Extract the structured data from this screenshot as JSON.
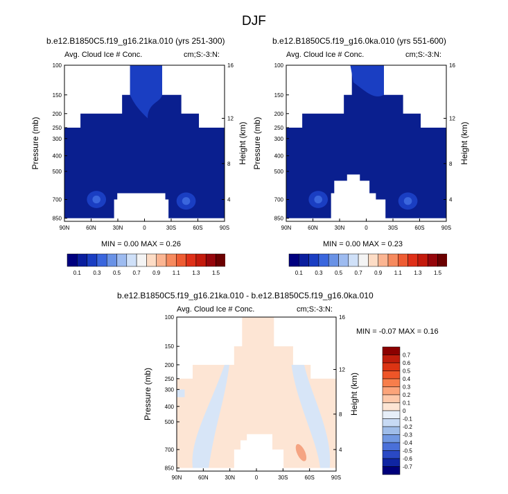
{
  "figure_title": "DJF",
  "panels": [
    {
      "id": "p1",
      "case_title": "b.e12.B1850C5.f19_g16.21ka.010 (yrs 251-300)",
      "left_label": "Avg. Cloud Ice # Conc.",
      "right_label": "cm;S:-3:N:",
      "min_max": "MIN =  0.00  MAX =  0.26",
      "ylabel_left": "Pressure (mb)",
      "ylabel_right": "Height (km)"
    },
    {
      "id": "p2",
      "case_title": "b.e12.B1850C5.f19_g16.0ka.010 (yrs 551-600)",
      "left_label": "Avg. Cloud Ice # Conc.",
      "right_label": "cm;S:-3:N:",
      "min_max": "MIN =  0.00  MAX =  0.23",
      "ylabel_left": "Pressure (mb)",
      "ylabel_right": "Height (km)"
    },
    {
      "id": "p3",
      "case_title": "b.e12.B1850C5.f19_g16.21ka.010 - b.e12.B1850C5.f19_g16.0ka.010",
      "left_label": "Avg. Cloud Ice # Conc.",
      "right_label": "cm;S:-3:N:",
      "min_max": "MIN = -0.07  MAX =  0.16",
      "ylabel_left": "Pressure (mb)",
      "ylabel_right": "Height (km)"
    }
  ],
  "chart_data": [
    {
      "type": "heatmap",
      "title": "b.e12.B1850C5.f19_g16.21ka.010 (yrs 251-300)",
      "x_ticks": [
        "90N",
        "60N",
        "30N",
        "0",
        "30S",
        "60S",
        "90S"
      ],
      "y_ticks_pressure": [
        "100",
        "150",
        "200",
        "250",
        "300",
        "400",
        "500",
        "700",
        "850"
      ],
      "y_ticks_height": [
        "16",
        "12",
        "8",
        "4"
      ],
      "xlabel": "",
      "ylabel": "Pressure (mb)",
      "ylabel_right": "Height (km)",
      "min": 0.0,
      "max": 0.26
    },
    {
      "type": "heatmap",
      "title": "b.e12.B1850C5.f19_g16.0ka.010 (yrs 551-600)",
      "x_ticks": [
        "90N",
        "60N",
        "30N",
        "0",
        "30S",
        "60S",
        "90S"
      ],
      "y_ticks_pressure": [
        "100",
        "150",
        "200",
        "250",
        "300",
        "400",
        "500",
        "700",
        "850"
      ],
      "y_ticks_height": [
        "16",
        "12",
        "8",
        "4"
      ],
      "xlabel": "",
      "ylabel": "Pressure (mb)",
      "ylabel_right": "Height (km)",
      "min": 0.0,
      "max": 0.23
    },
    {
      "type": "heatmap",
      "title": "b.e12.B1850C5.f19_g16.21ka.010 - b.e12.B1850C5.f19_g16.0ka.010",
      "x_ticks": [
        "90N",
        "60N",
        "30N",
        "0",
        "30S",
        "60S",
        "90S"
      ],
      "y_ticks_pressure": [
        "100",
        "150",
        "200",
        "250",
        "300",
        "400",
        "500",
        "700",
        "850"
      ],
      "y_ticks_height": [
        "16",
        "12",
        "8",
        "4"
      ],
      "xlabel": "",
      "ylabel": "Pressure (mb)",
      "ylabel_right": "Height (km)",
      "min": -0.07,
      "max": 0.16
    }
  ],
  "colorbar_top": {
    "labels": [
      "0.1",
      "0.3",
      "0.5",
      "0.7",
      "0.9",
      "1.1",
      "1.3",
      "1.5"
    ],
    "colors": [
      "#00007f",
      "#0a1e9e",
      "#1a3ec2",
      "#3a66dd",
      "#6992e6",
      "#9dbbf0",
      "#cfe0f8",
      "#f4f4f4",
      "#fddcc5",
      "#fbb592",
      "#f68a5e",
      "#ee5c33",
      "#df3018",
      "#c41a0c",
      "#96060b",
      "#6b0000"
    ]
  },
  "colorbar_diff": {
    "labels": [
      "0.7",
      "0.6",
      "0.5",
      "0.4",
      "0.3",
      "0.2",
      "0.1",
      "0",
      "-0.1",
      "-0.2",
      "-0.3",
      "-0.4",
      "-0.5",
      "-0.6",
      "-0.7"
    ],
    "colors": [
      "#8b0000",
      "#bf1d0c",
      "#dc3413",
      "#ee5528",
      "#f77e4b",
      "#fba47a",
      "#fdc8aa",
      "#fde5d4",
      "#e6eef8",
      "#c7daf4",
      "#9fbde9",
      "#7198e2",
      "#4a70d9",
      "#2a49c4",
      "#0f25a2",
      "#00007a"
    ]
  },
  "colors": {
    "deep_blue": "#0a1f8f",
    "mid_blue": "#1a3ec2",
    "light_orange": "#fde5d4",
    "light_blue": "#d7e5f7",
    "salmon": "#f5a482"
  }
}
